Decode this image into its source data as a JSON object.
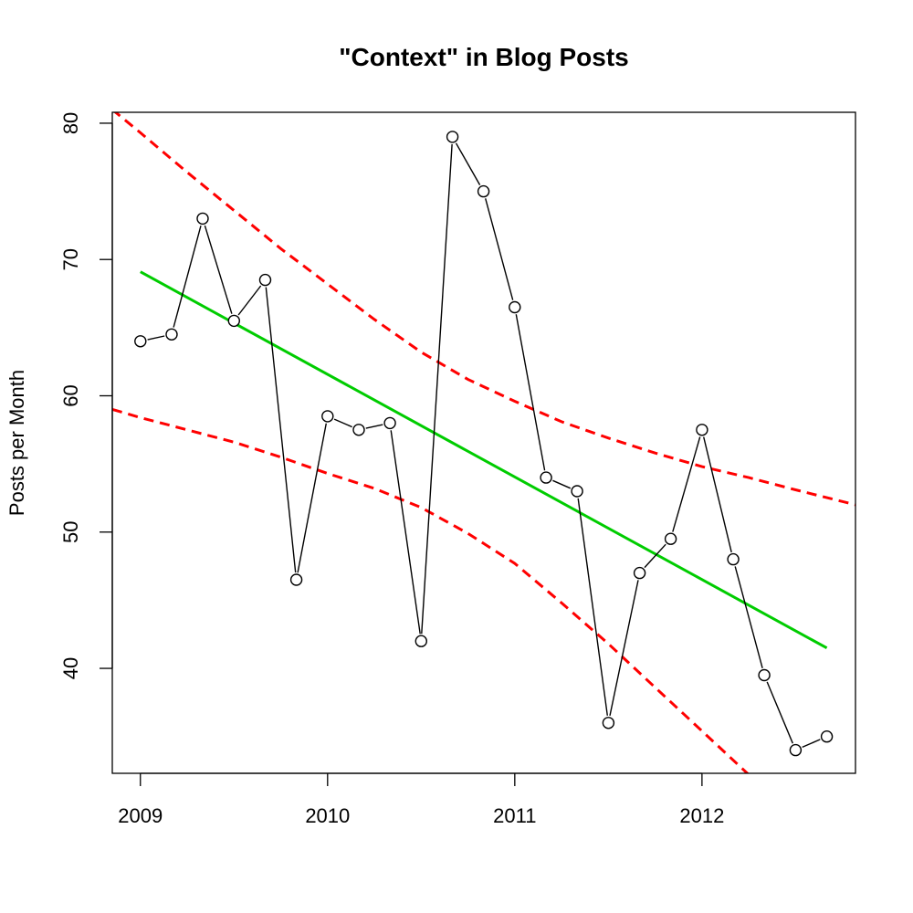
{
  "chart_data": {
    "type": "line",
    "title": "\"Context\" in Blog Posts",
    "xlabel": "",
    "ylabel": "Posts per Month",
    "x_ticks": [
      {
        "value": 2009,
        "label": "2009"
      },
      {
        "value": 2010,
        "label": "2010"
      },
      {
        "value": 2011,
        "label": "2011"
      },
      {
        "value": 2012,
        "label": "2012"
      }
    ],
    "y_ticks": [
      {
        "value": 40,
        "label": "40"
      },
      {
        "value": 50,
        "label": "50"
      },
      {
        "value": 60,
        "label": "60"
      },
      {
        "value": 70,
        "label": "70"
      },
      {
        "value": 80,
        "label": "80"
      }
    ],
    "xlim": [
      2008.85,
      2012.82
    ],
    "ylim": [
      32.3,
      80.8
    ],
    "grid": false,
    "series": [
      {
        "role": "observed",
        "style": "points-and-line",
        "color": "#000000",
        "x": [
          2009.0,
          2009.167,
          2009.333,
          2009.5,
          2009.667,
          2009.833,
          2010.0,
          2010.167,
          2010.333,
          2010.5,
          2010.667,
          2010.833,
          2011.0,
          2011.167,
          2011.333,
          2011.5,
          2011.667,
          2011.833,
          2012.0,
          2012.167,
          2012.333,
          2012.5,
          2012.667
        ],
        "y": [
          64,
          64.5,
          73,
          65.5,
          68.5,
          46.5,
          58.5,
          57.5,
          58,
          42,
          79,
          75,
          66.5,
          54,
          53,
          36,
          47,
          49.5,
          57.5,
          48,
          39.5,
          34,
          35
        ]
      },
      {
        "role": "trend",
        "style": "solid",
        "color": "#00cc00",
        "x": [
          2009.0,
          2012.667
        ],
        "y": [
          69.1,
          41.5
        ]
      },
      {
        "role": "upper-band",
        "style": "dashed",
        "color": "#ff0000",
        "x": [
          2008.85,
          2009.0,
          2009.25,
          2009.5,
          2009.75,
          2010.0,
          2010.25,
          2010.5,
          2010.75,
          2011.0,
          2011.25,
          2011.5,
          2011.75,
          2012.0,
          2012.25,
          2012.5,
          2012.82
        ],
        "y": [
          81.0,
          79.3,
          76.4,
          73.6,
          70.8,
          68.2,
          65.6,
          63.2,
          61.2,
          59.6,
          58.1,
          56.9,
          55.8,
          54.8,
          54.0,
          53.1,
          52.0
        ]
      },
      {
        "role": "lower-band",
        "style": "dashed",
        "color": "#ff0000",
        "x": [
          2008.85,
          2009.0,
          2009.25,
          2009.5,
          2009.75,
          2010.0,
          2010.25,
          2010.5,
          2010.75,
          2011.0,
          2011.25,
          2011.5,
          2011.75,
          2012.0,
          2012.25,
          2012.5,
          2012.55
        ],
        "y": [
          59.0,
          58.4,
          57.5,
          56.6,
          55.5,
          54.3,
          53.2,
          51.8,
          49.9,
          47.7,
          44.8,
          41.8,
          38.6,
          35.4,
          32.2,
          29.0,
          28.0
        ]
      }
    ]
  }
}
